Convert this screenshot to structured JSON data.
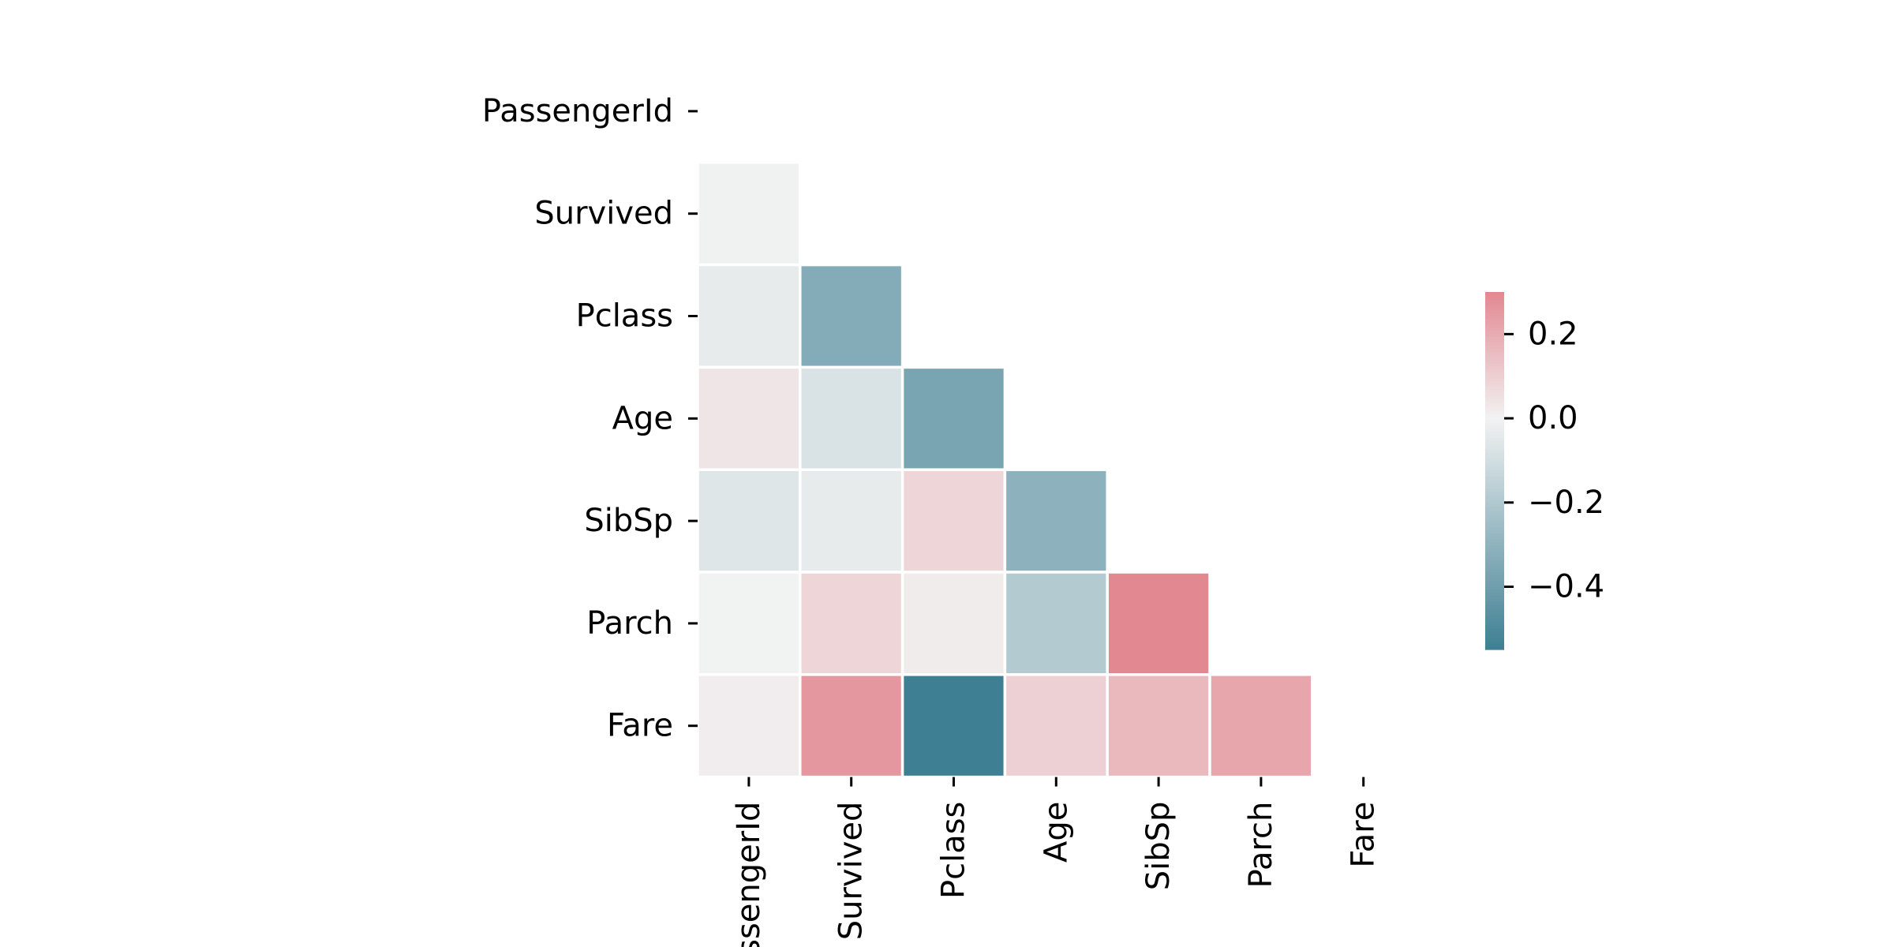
{
  "chart_data": {
    "type": "heatmap",
    "variables": [
      "PassengerId",
      "Survived",
      "Pclass",
      "Age",
      "SibSp",
      "Parch",
      "Fare"
    ],
    "row_labels": [
      "PassengerId",
      "Survived",
      "Pclass",
      "Age",
      "SibSp",
      "Parch",
      "Fare"
    ],
    "col_labels": [
      "PassengerId",
      "Survived",
      "Pclass",
      "Age",
      "SibSp",
      "Parch",
      "Fare"
    ],
    "mask": "upper triangle including diagonal",
    "matrix": [
      [
        null,
        null,
        null,
        null,
        null,
        null,
        null
      ],
      [
        -0.005,
        null,
        null,
        null,
        null,
        null,
        null
      ],
      [
        -0.035,
        -0.338,
        null,
        null,
        null,
        null,
        null
      ],
      [
        0.037,
        -0.077,
        -0.369,
        null,
        null,
        null,
        null
      ],
      [
        -0.058,
        -0.035,
        0.083,
        -0.308,
        null,
        null,
        null
      ],
      [
        -0.002,
        0.082,
        0.018,
        -0.189,
        0.415,
        null,
        null
      ],
      [
        0.013,
        0.257,
        -0.549,
        0.096,
        0.16,
        0.216,
        null
      ]
    ],
    "colorbar": {
      "range": [
        -0.549,
        0.3
      ],
      "ticks": [
        0.2,
        0.0,
        -0.2,
        -0.4
      ],
      "tick_labels": [
        "0.2",
        "0.0",
        "−0.2",
        "−0.4"
      ],
      "palette": "diverging",
      "negative_color": "#3e7f93",
      "center_color": "#f2f2f2",
      "positive_color": "#e28891"
    }
  }
}
